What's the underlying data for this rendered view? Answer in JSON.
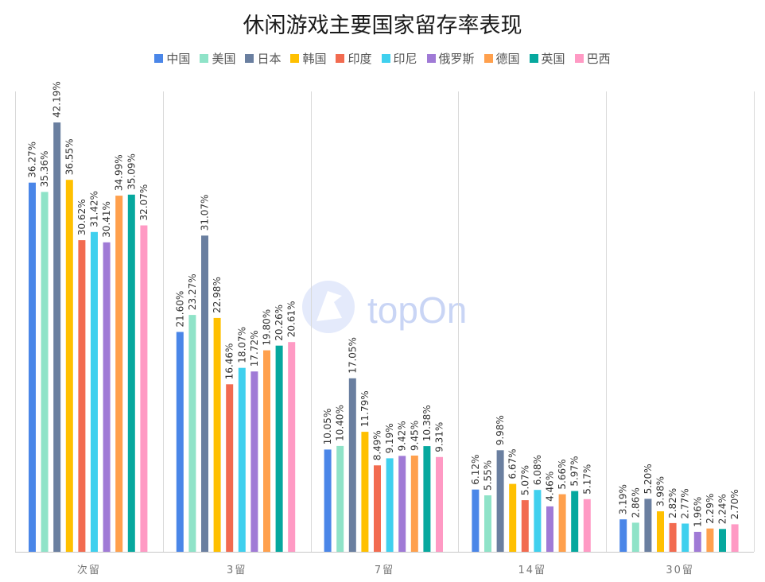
{
  "chart_data": {
    "type": "bar",
    "title": "休闲游戏主要国家留存率表现",
    "xlabel": "",
    "ylabel": "",
    "ylim": [
      0,
      45
    ],
    "grid": false,
    "legend_position": "top",
    "categories": [
      "次留",
      "3留",
      "7留",
      "14留",
      "30留"
    ],
    "series": [
      {
        "name": "中国",
        "color": "#4a86e8",
        "values": [
          36.27,
          21.6,
          10.05,
          6.12,
          3.19
        ],
        "labels": [
          "36.27%",
          "21.60%",
          "10.05%",
          "6.12%",
          "3.19%"
        ]
      },
      {
        "name": "美国",
        "color": "#8fe3c8",
        "values": [
          35.36,
          23.27,
          10.4,
          5.55,
          2.86
        ],
        "labels": [
          "35.36%",
          "23.27%",
          "10.40%",
          "5.55%",
          "2.86%"
        ]
      },
      {
        "name": "日本",
        "color": "#6a7fa0",
        "values": [
          42.19,
          31.07,
          17.05,
          9.98,
          5.2
        ],
        "labels": [
          "42.19%",
          "31.07%",
          "17.05%",
          "9.98%",
          "5.20%"
        ]
      },
      {
        "name": "韩国",
        "color": "#ffc000",
        "values": [
          36.55,
          22.98,
          11.79,
          6.67,
          3.98
        ],
        "labels": [
          "36.55%",
          "22.98%",
          "11.79%",
          "6.67%",
          "3.98%"
        ]
      },
      {
        "name": "印度",
        "color": "#f26b50",
        "values": [
          30.62,
          16.46,
          8.49,
          5.07,
          2.82
        ],
        "labels": [
          "30.62%",
          "16.46%",
          "8.49%",
          "5.07%",
          "2.82%"
        ]
      },
      {
        "name": "印尼",
        "color": "#3fd0ee",
        "values": [
          31.42,
          18.07,
          9.19,
          6.08,
          2.77
        ],
        "labels": [
          "31.42%",
          "18.07%",
          "9.19%",
          "6.08%",
          "2.77%"
        ]
      },
      {
        "name": "俄罗斯",
        "color": "#a07ad6",
        "values": [
          30.41,
          17.72,
          9.42,
          4.46,
          1.96
        ],
        "labels": [
          "30.41%",
          "17.72%",
          "9.42%",
          "4.46%",
          "1.96%"
        ]
      },
      {
        "name": "德国",
        "color": "#ffa04d",
        "values": [
          34.99,
          19.8,
          9.45,
          5.66,
          2.29
        ],
        "labels": [
          "34.99%",
          "19.80%",
          "9.45%",
          "5.66%",
          "2.29%"
        ]
      },
      {
        "name": "英国",
        "color": "#06a89e",
        "values": [
          35.09,
          20.26,
          10.38,
          5.97,
          2.24
        ],
        "labels": [
          "35.09%",
          "20.26%",
          "10.38%",
          "5.97%",
          "2.24%"
        ]
      },
      {
        "name": "巴西",
        "color": "#ff9ac4",
        "values": [
          32.07,
          20.61,
          9.31,
          5.17,
          2.7
        ],
        "labels": [
          "32.07%",
          "20.61%",
          "9.31%",
          "5.17%",
          "2.70%"
        ]
      }
    ]
  },
  "watermark": {
    "text": "topOn",
    "color": "#c9d5f5"
  }
}
